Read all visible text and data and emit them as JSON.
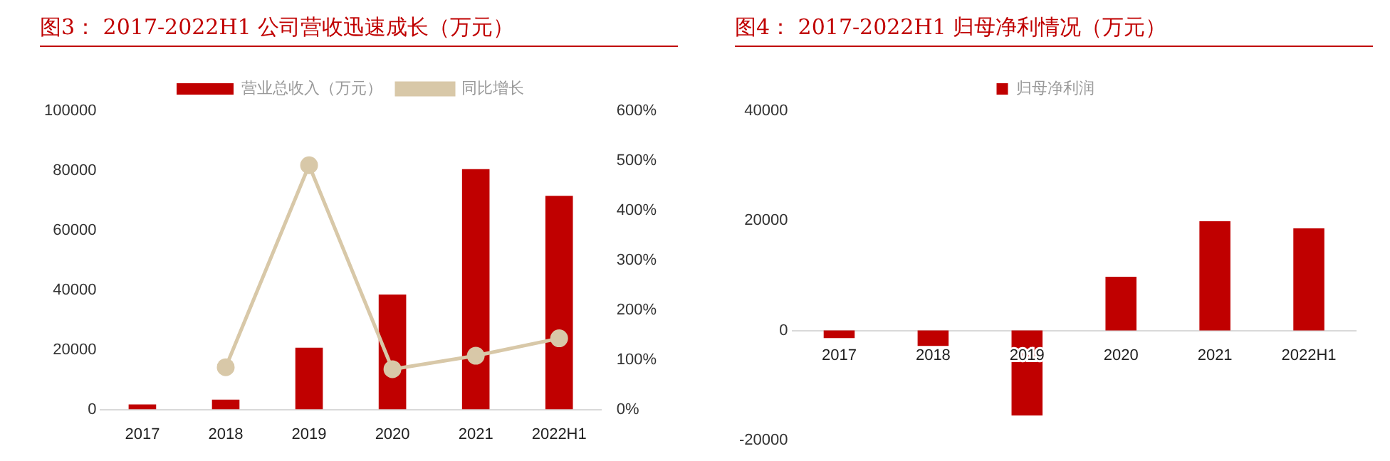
{
  "chart_data": [
    {
      "type": "bar",
      "title": "图3：  2017-2022H1 公司营收迅速成长（万元）",
      "categories": [
        "2017",
        "2018",
        "2019",
        "2020",
        "2021",
        "2022H1"
      ],
      "series": [
        {
          "name": "营业总收入（万元）",
          "color": "#c00000",
          "values": [
            1700,
            3300,
            20700,
            38500,
            80500,
            71600
          ]
        },
        {
          "name": "同比增长",
          "type": "line",
          "axis": "y2",
          "color": "#d8c8a8",
          "values": [
            null,
            85,
            491,
            81,
            108,
            143
          ]
        }
      ],
      "ylim": [
        0,
        100000
      ],
      "yticks": [
        0,
        20000,
        40000,
        60000,
        80000,
        100000
      ],
      "y2lim": [
        0,
        600
      ],
      "y2ticks": [
        {
          "value": 0,
          "label": "0%"
        },
        {
          "value": 100,
          "label": "100%"
        },
        {
          "value": 200,
          "label": "200%"
        },
        {
          "value": 300,
          "label": "300%"
        },
        {
          "value": 400,
          "label": "400%"
        },
        {
          "value": 500,
          "label": "500%"
        },
        {
          "value": 600,
          "label": "600%"
        }
      ],
      "grid": false,
      "legend": "top",
      "marker": "circle",
      "line_style": "solid"
    },
    {
      "type": "bar",
      "title": "图4：  2017-2022H1 归母净利情况（万元）",
      "categories": [
        "2017",
        "2018",
        "2019",
        "2020",
        "2021",
        "2022H1"
      ],
      "series": [
        {
          "name": "归母净利润",
          "color": "#c00000",
          "values": [
            -1400,
            -2800,
            -15500,
            9800,
            19900,
            18600
          ]
        }
      ],
      "ylim": [
        -20000,
        40000
      ],
      "yticks": [
        -20000,
        0,
        20000,
        40000
      ],
      "grid": false,
      "legend": "top"
    }
  ]
}
